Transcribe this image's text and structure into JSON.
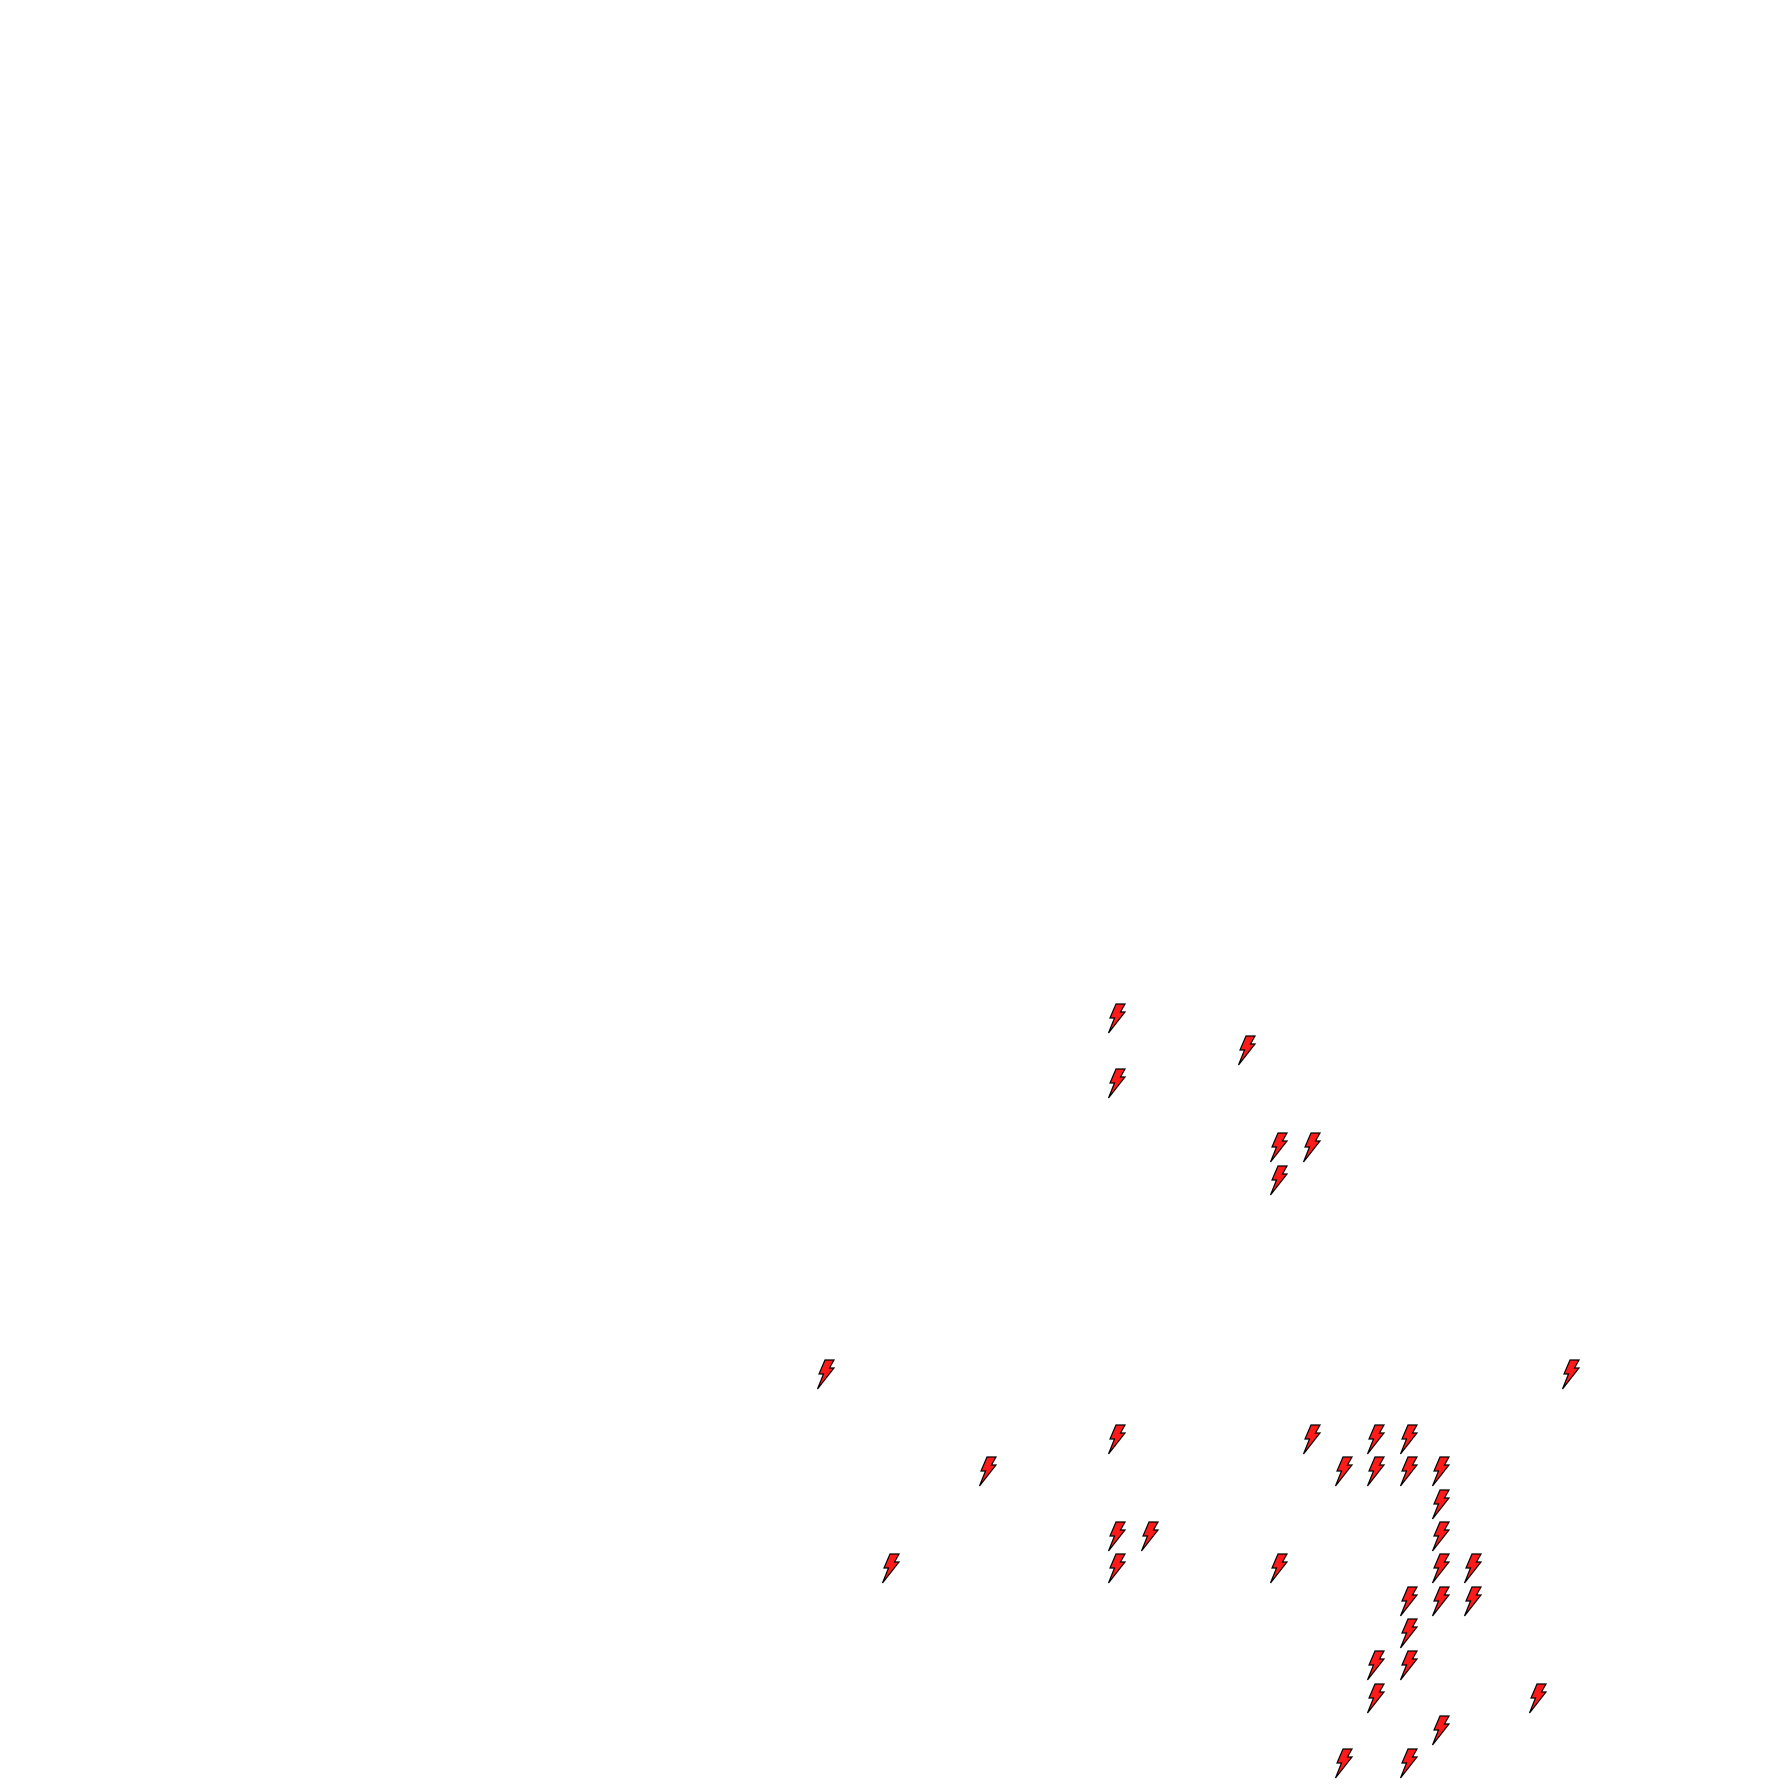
{
  "map": {
    "background_color": "#ffffff",
    "marker_icon": "lightning-bolt-icon",
    "marker_fill_color": "#ff1a1a",
    "marker_stroke_color": "#000000",
    "marker_count": 37
  }
}
